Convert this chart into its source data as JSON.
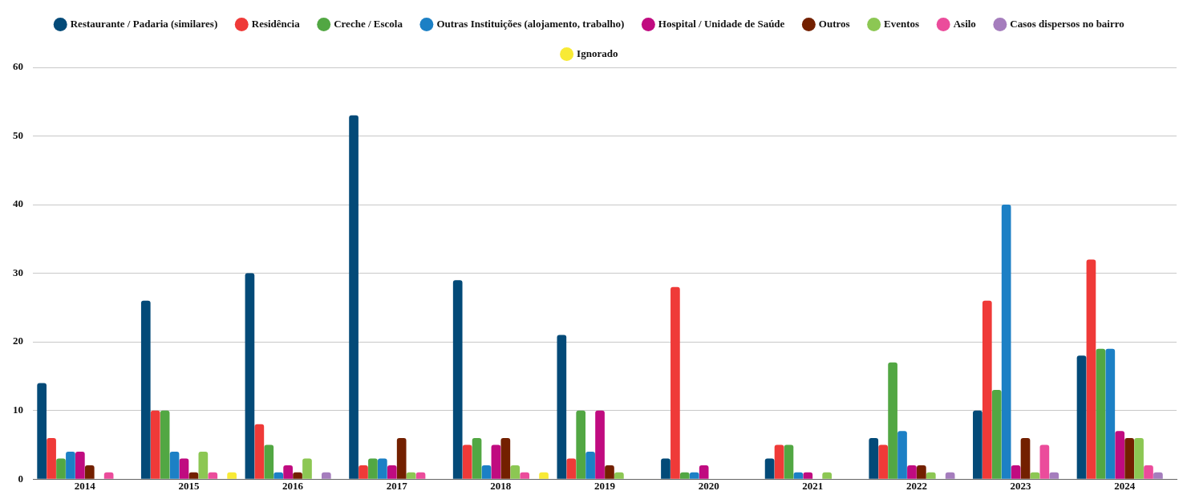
{
  "chart_data": {
    "type": "bar",
    "categories": [
      "2014",
      "2015",
      "2016",
      "2017",
      "2018",
      "2019",
      "2020",
      "2021",
      "2022",
      "2023",
      "2024"
    ],
    "series": [
      {
        "name": "Restaurante / Padaria (similares)",
        "color": "#034a78",
        "values": [
          14,
          26,
          30,
          53,
          29,
          21,
          3,
          3,
          6,
          10,
          18
        ]
      },
      {
        "name": "Residência",
        "color": "#ef3a38",
        "values": [
          6,
          10,
          8,
          2,
          5,
          3,
          28,
          5,
          5,
          26,
          32
        ]
      },
      {
        "name": "Creche / Escola",
        "color": "#52a743",
        "values": [
          3,
          10,
          5,
          3,
          6,
          10,
          1,
          5,
          17,
          13,
          19
        ]
      },
      {
        "name": "Outras Instituições (alojamento, trabalho)",
        "color": "#1c80c5",
        "values": [
          4,
          4,
          1,
          3,
          2,
          4,
          1,
          1,
          7,
          40,
          19
        ]
      },
      {
        "name": "Hospital / Unidade de Saúde",
        "color": "#c00b80",
        "values": [
          4,
          3,
          2,
          2,
          5,
          10,
          2,
          1,
          2,
          2,
          7
        ]
      },
      {
        "name": "Outros",
        "color": "#732000",
        "values": [
          2,
          1,
          1,
          6,
          6,
          2,
          0,
          0,
          2,
          6,
          6
        ]
      },
      {
        "name": "Eventos",
        "color": "#8cc753",
        "values": [
          0,
          4,
          3,
          1,
          2,
          1,
          0,
          1,
          1,
          1,
          6
        ]
      },
      {
        "name": "Asilo",
        "color": "#eb4c9b",
        "values": [
          1,
          1,
          0,
          1,
          1,
          0,
          0,
          0,
          0,
          5,
          2
        ]
      },
      {
        "name": "Casos dispersos no bairro",
        "color": "#a57dbd",
        "values": [
          0,
          0,
          1,
          0,
          0,
          0,
          0,
          0,
          1,
          1,
          1
        ]
      },
      {
        "name": "Ignorado",
        "color": "#f8ea35",
        "values": [
          0,
          1,
          0,
          0,
          1,
          0,
          0,
          0,
          0,
          0,
          0
        ]
      }
    ],
    "ylim": [
      0,
      60
    ],
    "yticks": [
      0,
      10,
      20,
      30,
      40,
      50,
      60
    ],
    "grid": "y",
    "legend": "top"
  }
}
